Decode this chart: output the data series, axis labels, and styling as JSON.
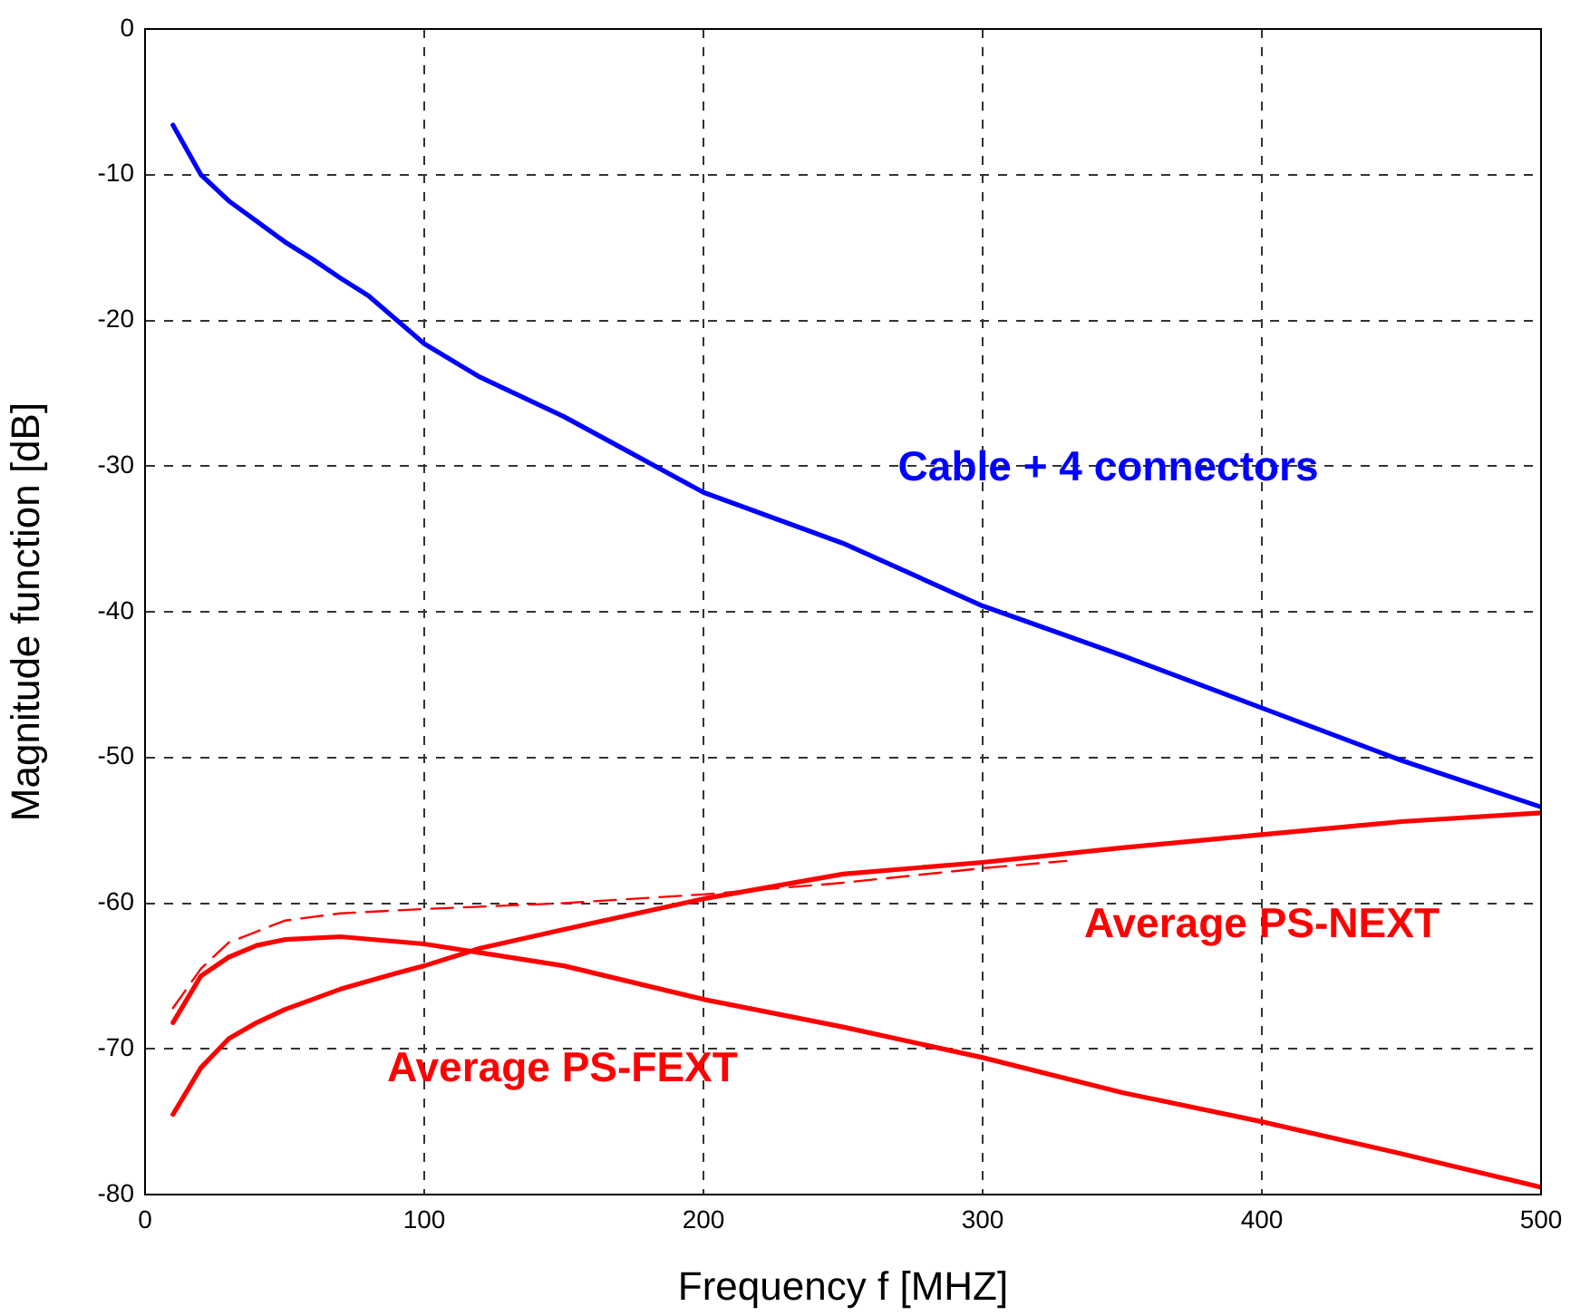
{
  "chart_data": {
    "type": "line",
    "xlabel": "Frequency f [MHZ]",
    "ylabel": "Magnitude function [dB]",
    "xlim": [
      0,
      500
    ],
    "xticks": [
      0,
      100,
      200,
      300,
      400,
      500
    ],
    "ylim": [
      -80,
      0
    ],
    "yticks": [
      -80,
      -70,
      -60,
      -50,
      -40,
      -30,
      -20,
      -10,
      0
    ],
    "grid": true,
    "legend": false,
    "marker": "none",
    "series": [
      {
        "name": "Cable + 4 connectors",
        "color": "#0000ff",
        "x": [
          10,
          20,
          30,
          40,
          50,
          60,
          70,
          80,
          100,
          120,
          150,
          175,
          200,
          250,
          300,
          350,
          400,
          450,
          500
        ],
        "values": [
          -6.6,
          -10,
          -11.8,
          -13.2,
          -14.6,
          -15.8,
          -17.1,
          -18.3,
          -21.6,
          -23.9,
          -26.6,
          -29.2,
          -31.8,
          -35.3,
          -39.6,
          -43,
          -46.6,
          -50.2,
          -53.4
        ]
      },
      {
        "name": "Average PS-NEXT",
        "color": "#ff0000",
        "x": [
          10,
          20,
          30,
          40,
          50,
          70,
          90,
          100,
          120,
          150,
          200,
          250,
          300,
          350,
          400,
          450,
          500
        ],
        "values": [
          -74.5,
          -71.3,
          -69.3,
          -68.2,
          -67.3,
          -65.9,
          -64.8,
          -64.3,
          -63.1,
          -61.8,
          -59.7,
          -58,
          -57.2,
          -56.2,
          -55.3,
          -54.4,
          -53.8
        ]
      },
      {
        "name": "Average PS-FEXT",
        "color": "#ff0000",
        "x": [
          10,
          20,
          30,
          40,
          50,
          70,
          100,
          120,
          150,
          200,
          250,
          300,
          350,
          400,
          450,
          500
        ],
        "values": [
          -68.2,
          -65,
          -63.7,
          -62.9,
          -62.5,
          -62.3,
          -62.8,
          -63.4,
          -64.3,
          -66.6,
          -68.5,
          -70.6,
          -73,
          -75,
          -77.2,
          -79.5
        ]
      },
      {
        "color": "#ff0000",
        "line_style": "dashed",
        "x": [
          10,
          20,
          30,
          50,
          70,
          100,
          150,
          200,
          250,
          300,
          330
        ],
        "values": [
          -67.2,
          -64.5,
          -62.7,
          -61.2,
          -60.7,
          -60.4,
          -60,
          -59.4,
          -58.6,
          -57.6,
          -57.1
        ]
      }
    ]
  }
}
